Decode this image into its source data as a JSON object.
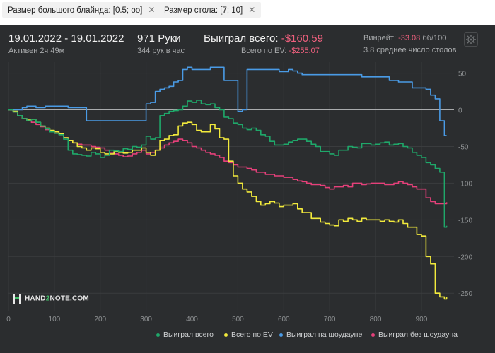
{
  "filters": [
    {
      "label": "Размер большого блайнда: [0.5; oo]",
      "close_icon": "close-icon"
    },
    {
      "label": "Размер стола: [7; 10]",
      "close_icon": "close-icon"
    }
  ],
  "header": {
    "date_range": "19.01.2022 - 19.01.2022",
    "active": "Активен 2ч 49м",
    "hands": "971 Руки",
    "hands_per_hour": "344 рук в час",
    "won_total_label": "Выиграл всего:",
    "won_total_value": "-$160.59",
    "ev_label": "Всего по EV:",
    "ev_value": "-$255.07",
    "winrate_label": "Винрейт:",
    "winrate_value": "-33.08",
    "winrate_unit": "бб/100",
    "avg_tables": "3.8 среднее число столов",
    "settings_icon": "gear-icon"
  },
  "logo": {
    "part1": "HAND",
    "part2": "2",
    "part3": "NOTE.COM"
  },
  "colors": {
    "green": "#1fa86a",
    "yellow": "#f2ea3c",
    "blue": "#4a9be6",
    "pink": "#e5407a",
    "negative": "#f0607e"
  },
  "chart_data": {
    "type": "line",
    "xlabel": "",
    "ylabel": "",
    "xlim": [
      0,
      971
    ],
    "ylim": [
      -270,
      65
    ],
    "x_ticks": [
      "0",
      "100",
      "200",
      "300",
      "400",
      "500",
      "600",
      "700",
      "800",
      "900"
    ],
    "y_ticks": [
      "50",
      "0",
      "-50",
      "-100",
      "-150",
      "-200",
      "-250"
    ],
    "legend_position": "bottom-right",
    "series": [
      {
        "name": "Выиграл всего",
        "color": "#1fa86a",
        "x": [
          0,
          10,
          20,
          30,
          40,
          50,
          60,
          70,
          80,
          90,
          100,
          110,
          120,
          130,
          140,
          150,
          160,
          170,
          180,
          190,
          200,
          210,
          220,
          230,
          240,
          250,
          260,
          270,
          280,
          290,
          300,
          310,
          320,
          330,
          340,
          350,
          360,
          370,
          380,
          390,
          400,
          410,
          420,
          430,
          440,
          450,
          460,
          470,
          480,
          490,
          500,
          510,
          520,
          530,
          540,
          550,
          560,
          570,
          580,
          590,
          600,
          610,
          620,
          630,
          640,
          650,
          660,
          670,
          680,
          690,
          700,
          710,
          720,
          730,
          740,
          750,
          760,
          770,
          780,
          790,
          800,
          810,
          820,
          830,
          840,
          850,
          860,
          870,
          880,
          890,
          900,
          910,
          920,
          930,
          940,
          950,
          955
        ],
        "y": [
          0,
          -3,
          -8,
          -12,
          -15,
          -13,
          -17,
          -22,
          -26,
          -30,
          -32,
          -34,
          -40,
          -55,
          -60,
          -61,
          -62,
          -63,
          -58,
          -60,
          -65,
          -62,
          -55,
          -56,
          -57,
          -53,
          -54,
          -50,
          -51,
          -48,
          -36,
          -40,
          -38,
          -8,
          -5,
          -2,
          -1,
          0,
          5,
          12,
          10,
          13,
          8,
          7,
          8,
          3,
          0,
          -10,
          -12,
          -18,
          -20,
          -25,
          -27,
          -25,
          -28,
          -34,
          -36,
          -43,
          -48,
          -48,
          -47,
          -44,
          -42,
          -40,
          -40,
          -43,
          -47,
          -50,
          -57,
          -57,
          -60,
          -62,
          -55,
          -55,
          -50,
          -51,
          -52,
          -46,
          -46,
          -48,
          -47,
          -45,
          -44,
          -48,
          -47,
          -46,
          -50,
          -52,
          -58,
          -62,
          -65,
          -72,
          -75,
          -80,
          -85,
          -160,
          -158
        ]
      },
      {
        "name": "Всего по EV",
        "color": "#f2ea3c",
        "x": [
          0,
          10,
          20,
          30,
          40,
          50,
          60,
          70,
          80,
          90,
          100,
          110,
          120,
          130,
          140,
          150,
          160,
          170,
          180,
          190,
          200,
          210,
          220,
          230,
          240,
          250,
          260,
          270,
          280,
          290,
          300,
          310,
          320,
          330,
          340,
          350,
          360,
          370,
          380,
          390,
          400,
          410,
          420,
          430,
          440,
          450,
          460,
          470,
          480,
          490,
          500,
          510,
          520,
          530,
          540,
          550,
          560,
          570,
          580,
          590,
          600,
          610,
          620,
          630,
          640,
          650,
          660,
          670,
          680,
          690,
          700,
          710,
          720,
          730,
          740,
          750,
          760,
          770,
          780,
          790,
          800,
          810,
          820,
          830,
          840,
          850,
          860,
          870,
          880,
          890,
          900,
          910,
          920,
          930,
          940,
          950,
          955
        ],
        "y": [
          0,
          -2,
          -8,
          -12,
          -14,
          -13,
          -17,
          -22,
          -25,
          -28,
          -30,
          -33,
          -38,
          -42,
          -45,
          -50,
          -52,
          -55,
          -52,
          -53,
          -58,
          -60,
          -60,
          -57,
          -58,
          -59,
          -58,
          -55,
          -55,
          -52,
          -58,
          -62,
          -55,
          -42,
          -40,
          -35,
          -34,
          -22,
          -18,
          -17,
          -20,
          -28,
          -30,
          -30,
          -20,
          -26,
          -38,
          -40,
          -70,
          -90,
          -100,
          -108,
          -112,
          -118,
          -125,
          -130,
          -128,
          -125,
          -127,
          -132,
          -130,
          -130,
          -128,
          -135,
          -140,
          -140,
          -148,
          -148,
          -153,
          -155,
          -157,
          -158,
          -150,
          -152,
          -148,
          -150,
          -152,
          -148,
          -150,
          -150,
          -150,
          -152,
          -150,
          -152,
          -153,
          -150,
          -155,
          -160,
          -160,
          -170,
          -172,
          -200,
          -210,
          -250,
          -255,
          -258,
          -255
        ]
      },
      {
        "name": "Выиграл на шоудауне",
        "color": "#4a9be6",
        "x": [
          0,
          10,
          20,
          30,
          40,
          50,
          60,
          70,
          80,
          90,
          100,
          110,
          120,
          130,
          140,
          150,
          160,
          170,
          180,
          190,
          200,
          210,
          220,
          230,
          240,
          250,
          260,
          270,
          280,
          290,
          300,
          310,
          320,
          330,
          340,
          350,
          360,
          370,
          380,
          390,
          400,
          410,
          420,
          430,
          440,
          450,
          460,
          470,
          480,
          490,
          500,
          510,
          520,
          530,
          540,
          550,
          560,
          570,
          580,
          590,
          600,
          610,
          620,
          630,
          640,
          650,
          660,
          670,
          680,
          690,
          700,
          710,
          720,
          730,
          740,
          750,
          760,
          770,
          780,
          790,
          800,
          810,
          820,
          830,
          840,
          850,
          860,
          870,
          880,
          890,
          900,
          910,
          920,
          930,
          940,
          950,
          955
        ],
        "y": [
          0,
          0,
          0,
          3,
          5,
          5,
          3,
          3,
          5,
          5,
          5,
          5,
          5,
          3,
          3,
          3,
          3,
          -15,
          -15,
          -15,
          -15,
          -15,
          -15,
          -15,
          -15,
          -15,
          -15,
          -15,
          -15,
          -15,
          8,
          10,
          25,
          28,
          30,
          32,
          38,
          40,
          55,
          58,
          55,
          55,
          55,
          55,
          58,
          58,
          58,
          40,
          40,
          40,
          -2,
          0,
          55,
          55,
          55,
          55,
          55,
          55,
          55,
          52,
          52,
          55,
          53,
          50,
          48,
          48,
          48,
          48,
          48,
          48,
          48,
          48,
          48,
          48,
          48,
          48,
          48,
          45,
          45,
          45,
          45,
          45,
          45,
          40,
          40,
          38,
          38,
          38,
          30,
          30,
          30,
          28,
          20,
          15,
          -15,
          -35,
          -35
        ]
      },
      {
        "name": "Выиграл без шоудауна",
        "color": "#e5407a",
        "x": [
          0,
          10,
          20,
          30,
          40,
          50,
          60,
          70,
          80,
          90,
          100,
          110,
          120,
          130,
          140,
          150,
          160,
          170,
          180,
          190,
          200,
          210,
          220,
          230,
          240,
          250,
          260,
          270,
          280,
          290,
          300,
          310,
          320,
          330,
          340,
          350,
          360,
          370,
          380,
          390,
          400,
          410,
          420,
          430,
          440,
          450,
          460,
          470,
          480,
          490,
          500,
          510,
          520,
          530,
          540,
          550,
          560,
          570,
          580,
          590,
          600,
          610,
          620,
          630,
          640,
          650,
          660,
          670,
          680,
          690,
          700,
          710,
          720,
          730,
          740,
          750,
          760,
          770,
          780,
          790,
          800,
          810,
          820,
          830,
          840,
          850,
          860,
          870,
          880,
          890,
          900,
          910,
          920,
          930,
          940,
          950,
          955
        ],
        "y": [
          0,
          -3,
          -8,
          -12,
          -15,
          -17,
          -20,
          -23,
          -27,
          -30,
          -32,
          -34,
          -38,
          -42,
          -45,
          -47,
          -48,
          -48,
          -50,
          -51,
          -52,
          -55,
          -58,
          -60,
          -62,
          -64,
          -63,
          -60,
          -58,
          -55,
          -60,
          -58,
          -55,
          -52,
          -48,
          -45,
          -43,
          -40,
          -42,
          -45,
          -50,
          -52,
          -55,
          -58,
          -60,
          -62,
          -65,
          -70,
          -72,
          -75,
          -78,
          -78,
          -80,
          -82,
          -85,
          -85,
          -88,
          -88,
          -90,
          -90,
          -92,
          -92,
          -95,
          -97,
          -98,
          -100,
          -102,
          -102,
          -103,
          -106,
          -108,
          -105,
          -105,
          -103,
          -105,
          -100,
          -100,
          -102,
          -101,
          -100,
          -100,
          -100,
          -102,
          -102,
          -100,
          -98,
          -100,
          -102,
          -105,
          -108,
          -108,
          -120,
          -125,
          -128,
          -128,
          -128,
          -126
        ]
      }
    ]
  }
}
